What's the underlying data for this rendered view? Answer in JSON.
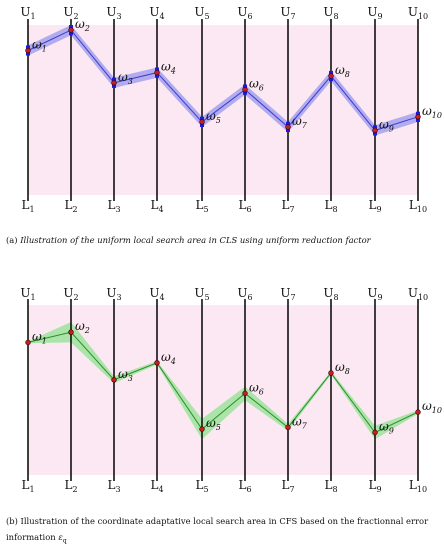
{
  "upper_labels": [
    "U1",
    "U2",
    "U3",
    "U4",
    "U5",
    "U6",
    "U7",
    "U8",
    "U9",
    "U10"
  ],
  "lower_labels": [
    "L1",
    "L2",
    "L3",
    "L4",
    "L5",
    "L6",
    "L7",
    "L8",
    "L9",
    "L10"
  ],
  "omega_labels": [
    "ω1",
    "ω2",
    "ω3",
    "ω4",
    "ω5",
    "ω6",
    "ω7",
    "ω8",
    "ω9",
    "ω10"
  ],
  "colors": {
    "background_band": "#fbe8f2",
    "axis": "#111111",
    "uniform_band": "#9a98ee",
    "uniform_line": "#3a3ad0",
    "uniform_marker": "#1a1ae0",
    "adaptive_band": "#9be39b",
    "adaptive_line": "#2c8c2c",
    "point": "#c81e1e"
  },
  "panel_a": {
    "caption_prefix": "(a)",
    "caption_text": "Illustration of the uniform local search area in CLS using uniform reduction factor",
    "levels": [
      0.15,
      0.03,
      0.34,
      0.28,
      0.57,
      0.38,
      0.6,
      0.3,
      0.62,
      0.54
    ],
    "half_width": 0.03
  },
  "panel_b": {
    "caption_line1": "(b) Illustration of the coordinate adaptative local search area in CFS based on the fractionnal error",
    "caption_line2_prefix": "information",
    "caption_symbol": "ε",
    "caption_symbol_sub": "q",
    "levels": [
      0.22,
      0.16,
      0.44,
      0.34,
      0.73,
      0.52,
      0.72,
      0.4,
      0.75,
      0.63
    ],
    "half_widths": [
      0.005,
      0.06,
      0.02,
      0.01,
      0.06,
      0.04,
      0.02,
      0.01,
      0.04,
      0.01
    ]
  }
}
